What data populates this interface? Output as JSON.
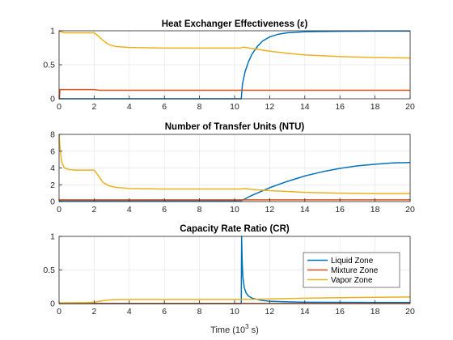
{
  "chart_data": [
    {
      "type": "line",
      "title": "Heat Exchanger Effectiveness (ε)",
      "xlim": [
        0,
        20
      ],
      "ylim": [
        0,
        1
      ],
      "xticks": [
        "0",
        "2",
        "4",
        "6",
        "8",
        "10",
        "12",
        "14",
        "16",
        "18",
        "20"
      ],
      "yticks": [
        "0",
        "0.5",
        "1"
      ],
      "grid": true,
      "series": [
        {
          "name": "Liquid Zone",
          "color": "#0072BD",
          "x": [
            0,
            10.38,
            10.45,
            10.6,
            10.8,
            11.0,
            11.3,
            11.6,
            12.0,
            12.5,
            13.0,
            14.0,
            15.0,
            16.0,
            18.0,
            20.0
          ],
          "y": [
            0,
            0,
            0.22,
            0.4,
            0.55,
            0.66,
            0.77,
            0.85,
            0.91,
            0.95,
            0.97,
            0.985,
            0.99,
            0.993,
            0.995,
            0.995
          ]
        },
        {
          "name": "Mixture Zone",
          "color": "#D95319",
          "x": [
            0,
            0.02,
            0.05,
            2.0,
            2.3,
            4,
            6,
            8,
            10,
            12,
            14,
            16,
            18,
            20
          ],
          "y": [
            0,
            0,
            0.135,
            0.135,
            0.125,
            0.125,
            0.125,
            0.125,
            0.125,
            0.125,
            0.125,
            0.125,
            0.125,
            0.125
          ]
        },
        {
          "name": "Vapor Zone",
          "color": "#EDB120",
          "x": [
            0,
            0.05,
            0.3,
            1.0,
            2.0,
            2.2,
            2.5,
            2.8,
            3.2,
            4,
            6,
            8,
            10.3,
            10.5,
            11,
            12,
            13,
            14,
            16,
            18,
            20
          ],
          "y": [
            1.0,
            0.99,
            0.97,
            0.97,
            0.97,
            0.93,
            0.86,
            0.8,
            0.77,
            0.755,
            0.745,
            0.745,
            0.745,
            0.76,
            0.74,
            0.7,
            0.67,
            0.645,
            0.62,
            0.605,
            0.6
          ]
        }
      ]
    },
    {
      "type": "line",
      "title": "Number of Transfer Units (NTU)",
      "xlim": [
        0,
        20
      ],
      "ylim": [
        0,
        8
      ],
      "xticks": [
        "0",
        "2",
        "4",
        "6",
        "8",
        "10",
        "12",
        "14",
        "16",
        "18",
        "20"
      ],
      "yticks": [
        "0",
        "2",
        "4",
        "6",
        "8"
      ],
      "grid": true,
      "series": [
        {
          "name": "Liquid Zone",
          "color": "#0072BD",
          "x": [
            0,
            10.4,
            11,
            12,
            13,
            14,
            15,
            16,
            17,
            18,
            19,
            20
          ],
          "y": [
            0.12,
            0.12,
            0.75,
            1.65,
            2.4,
            3.05,
            3.55,
            3.95,
            4.25,
            4.45,
            4.6,
            4.65
          ]
        },
        {
          "name": "Mixture Zone",
          "color": "#D95319",
          "x": [
            0,
            20
          ],
          "y": [
            0.2,
            0.2
          ]
        },
        {
          "name": "Vapor Zone",
          "color": "#EDB120",
          "x": [
            0,
            0.05,
            0.15,
            0.3,
            0.6,
            1.0,
            2.0,
            2.2,
            2.5,
            2.8,
            3.2,
            4,
            6,
            8,
            10.3,
            10.6,
            11,
            12,
            13,
            14,
            16,
            18,
            20
          ],
          "y": [
            8,
            6.5,
            4.7,
            4.0,
            3.8,
            3.75,
            3.75,
            3.2,
            2.3,
            1.9,
            1.7,
            1.55,
            1.5,
            1.5,
            1.5,
            1.55,
            1.45,
            1.3,
            1.2,
            1.1,
            1.0,
            0.95,
            0.95
          ]
        }
      ]
    },
    {
      "type": "line",
      "title": "Capacity Rate Ratio (CR)",
      "xlim": [
        0,
        20
      ],
      "ylim": [
        0,
        1
      ],
      "xticks": [
        "0",
        "2",
        "4",
        "6",
        "8",
        "10",
        "12",
        "14",
        "16",
        "18",
        "20"
      ],
      "yticks": [
        "0",
        "0.5",
        "1"
      ],
      "grid": true,
      "xlabel": "Time (10",
      "xlabel_sup": "3",
      "xlabel_tail": " s)",
      "legend": {
        "position": "right",
        "entries": [
          "Liquid Zone",
          "Mixture Zone",
          "Vapor Zone"
        ]
      },
      "series": [
        {
          "name": "Liquid Zone",
          "color": "#0072BD",
          "x": [
            0,
            10.38,
            10.4,
            10.43,
            10.47,
            10.55,
            10.65,
            10.8,
            11.0,
            11.3,
            11.6,
            12.0,
            13.0,
            14.0,
            16.0,
            18.0,
            20.0
          ],
          "y": [
            0,
            0,
            1.0,
            0.65,
            0.4,
            0.24,
            0.16,
            0.11,
            0.08,
            0.06,
            0.045,
            0.035,
            0.025,
            0.02,
            0.018,
            0.017,
            0.017
          ]
        },
        {
          "name": "Mixture Zone",
          "color": "#D95319",
          "x": [
            0,
            20
          ],
          "y": [
            0.002,
            0.002
          ]
        },
        {
          "name": "Vapor Zone",
          "color": "#EDB120",
          "x": [
            0,
            1.5,
            2.0,
            2.3,
            2.7,
            3.2,
            4,
            6,
            8,
            10.3,
            10.5,
            11,
            12,
            14,
            16,
            18,
            20
          ],
          "y": [
            0.01,
            0.015,
            0.02,
            0.035,
            0.05,
            0.06,
            0.062,
            0.062,
            0.062,
            0.062,
            0.065,
            0.062,
            0.07,
            0.08,
            0.088,
            0.094,
            0.098
          ]
        }
      ]
    }
  ]
}
